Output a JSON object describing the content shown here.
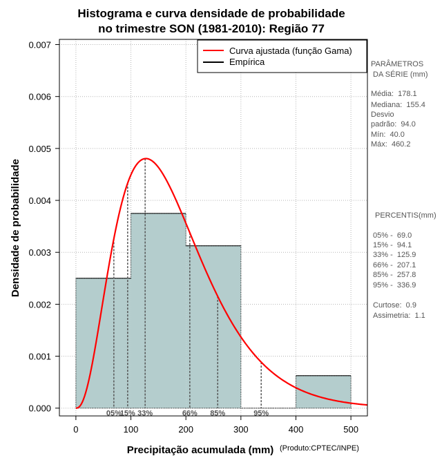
{
  "chart_data": {
    "type": "bar",
    "title": [
      "Histograma e curva densidade de probabilidade",
      "no trimestre SON (1981-2010): Região 77"
    ],
    "xlabel": "Precipitação acumulada (mm)",
    "ylabel": "Densidade de probabilidade",
    "credit": "(Produto:CPTEC/INPE)",
    "xlim": [
      -30,
      530
    ],
    "ylim": [
      -0.00015,
      0.0071
    ],
    "xticks": [
      0,
      100,
      200,
      300,
      400,
      500
    ],
    "xtick_labels": [
      "0",
      "100",
      "200",
      "300",
      "400",
      "500"
    ],
    "yticks": [
      0,
      0.001,
      0.002,
      0.003,
      0.004,
      0.005,
      0.006,
      0.007
    ],
    "ytick_labels": [
      "0.000",
      "0.001",
      "0.002",
      "0.003",
      "0.004",
      "0.005",
      "0.006",
      "0.007"
    ],
    "grid": true,
    "bins": [
      {
        "x0": 0,
        "x1": 100,
        "density": 0.0025
      },
      {
        "x0": 100,
        "x1": 200,
        "density": 0.00375
      },
      {
        "x0": 200,
        "x1": 300,
        "density": 0.003125
      },
      {
        "x0": 300,
        "x1": 400,
        "density": 0
      },
      {
        "x0": 400,
        "x1": 500,
        "density": 0.000625
      }
    ],
    "gamma_fit": {
      "shape": 3.51,
      "scale": 50.7
    },
    "percentiles": [
      {
        "label": "05%",
        "value": 69.0
      },
      {
        "label": "15%",
        "value": 94.1
      },
      {
        "label": "33%",
        "value": 125.9
      },
      {
        "label": "66%",
        "value": 207.1
      },
      {
        "label": "85%",
        "value": 257.8
      },
      {
        "label": "95%",
        "value": 336.9
      }
    ],
    "legend": [
      {
        "label": "Curva ajustada (função Gama)",
        "color": "#ff0000"
      },
      {
        "label": "Empírica",
        "color": "#000000"
      }
    ],
    "legend_position": "top-right",
    "colors": {
      "bar_fill": "#b4cdcd",
      "curve": "#ff0000",
      "grid": "#b3b3b3",
      "percentile_line": "#555555"
    },
    "side_panel": {
      "parametros_title": [
        "PARÂMETROS",
        " DA SÉRIE (mm)"
      ],
      "parametros": [
        "Média:  178.1",
        "Mediana:  155.4",
        "Desvio",
        "padrão:  94.0",
        "Mín:  40.0",
        "Máx:  460.2"
      ],
      "percentis_title": "PERCENTIS(mm)",
      "percentis": [
        "05% -  69.0",
        "15% -  94.1",
        "33% -  125.9",
        "66% -  207.1",
        "85% -  257.8",
        "95% -  336.9"
      ],
      "stats": [
        "Curtose:  0.9",
        "Assimetria:  1.1"
      ]
    }
  }
}
